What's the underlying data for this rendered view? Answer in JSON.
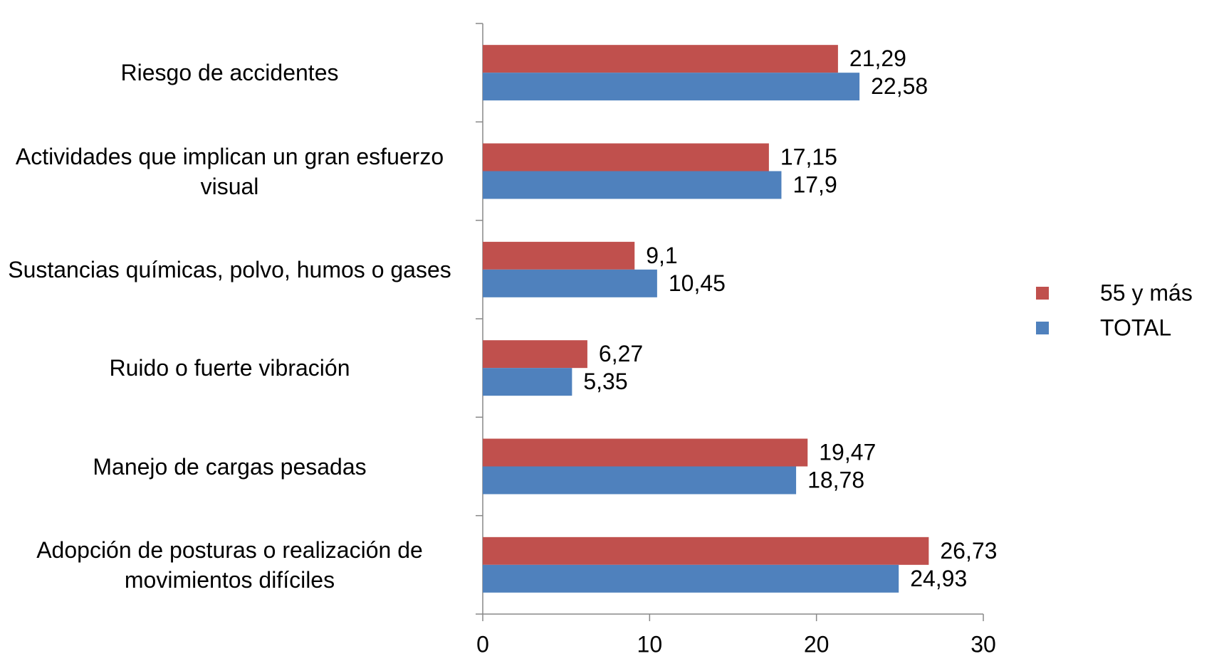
{
  "chart_data": {
    "type": "hbar",
    "categories": [
      "Riesgo de accidentes",
      "Actividades que implican un gran esfuerzo visual",
      "Sustancias químicas, polvo, humos o gases",
      "Ruido o fuerte vibración",
      "Manejo de cargas pesadas",
      "Adopción de posturas o realización de movimientos difíciles"
    ],
    "series": [
      {
        "name": "55 y más",
        "color": "#c0504d",
        "values": [
          21.29,
          17.15,
          9.1,
          6.27,
          19.47,
          26.73
        ],
        "value_labels": [
          "21,29",
          "17,15",
          "9,1",
          "6,27",
          "19,47",
          "26,73"
        ]
      },
      {
        "name": "TOTAL",
        "color": "#4f81bd",
        "values": [
          22.58,
          17.9,
          10.45,
          5.35,
          18.78,
          24.93
        ],
        "value_labels": [
          "22,58",
          "17,9",
          "10,45",
          "5,35",
          "18,78",
          "24,93"
        ]
      }
    ],
    "xlim": [
      0,
      30
    ],
    "xticks": [
      0,
      10,
      20,
      30
    ],
    "legend": "right"
  }
}
